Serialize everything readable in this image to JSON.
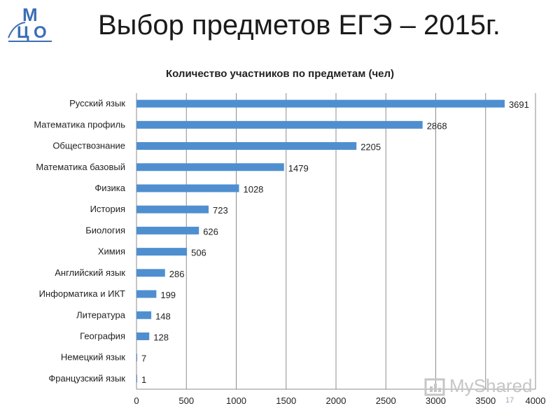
{
  "slide": {
    "title": "Выбор предметов ЕГЭ – 2015г.",
    "page_number": "17",
    "watermark": "MyShared"
  },
  "colors": {
    "bar": "#4f8fd0",
    "grid": "#8c8c8c",
    "logo": "#3b6fb6"
  },
  "chart_data": {
    "type": "bar",
    "orientation": "horizontal",
    "title": "Количество участников по предметам (чел)",
    "xlabel": "",
    "ylabel": "",
    "xlim": [
      0,
      4000
    ],
    "x_ticks": [
      0,
      500,
      1000,
      1500,
      2000,
      2500,
      3000,
      3500,
      4000
    ],
    "grid": "vertical",
    "categories": [
      "Русский язык",
      "Математика профиль",
      "Обществознание",
      "Математика базовый",
      "Физика",
      "История",
      "Биология",
      "Химия",
      "Английский язык",
      "Информатика и ИКТ",
      "Литература",
      "География",
      "Немецкий язык",
      "Французский язык"
    ],
    "values": [
      3691,
      2868,
      2205,
      1479,
      1028,
      723,
      626,
      506,
      286,
      199,
      148,
      128,
      7,
      1
    ]
  }
}
